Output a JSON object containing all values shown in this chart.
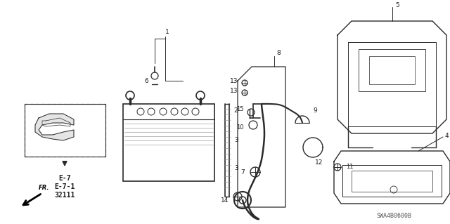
{
  "bg_color": "#ffffff",
  "line_color": "#2a2a2a",
  "text_color": "#1a1a1a",
  "diagram_code": "SWA4B0600B",
  "ref_labels": [
    "E-7",
    "E-7-1",
    "32111"
  ],
  "figsize": [
    6.4,
    3.19
  ],
  "dpi": 100
}
